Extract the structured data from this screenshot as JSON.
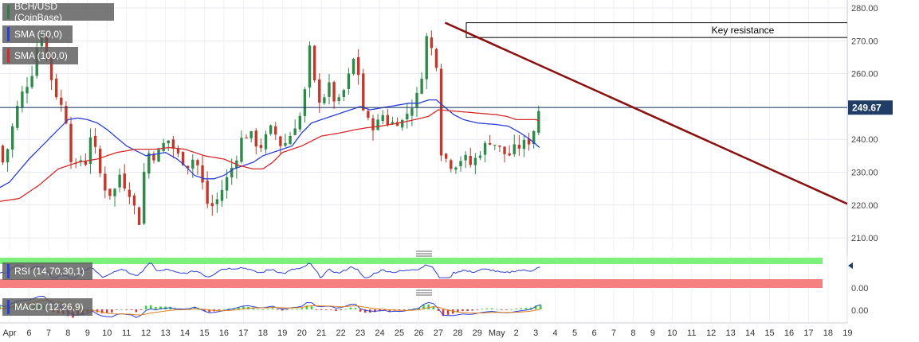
{
  "chart_data": [
    {
      "type": "candlestick",
      "title": "BCH/USD (CoinBase)",
      "indicators": [
        {
          "name": "SMA (50,0)",
          "color": "#2a3fd4"
        },
        {
          "name": "SMA (100,0)",
          "color": "#d42a2a"
        }
      ],
      "ylim": [
        205,
        282
      ],
      "y_ticks": [
        "210.00",
        "220.00",
        "230.00",
        "240.00",
        "250.00",
        "260.00",
        "270.00",
        "280.00"
      ],
      "x_ticks": [
        "Apr",
        "6",
        "7",
        "8",
        "9",
        "10",
        "11",
        "12",
        "13",
        "14",
        "15",
        "16",
        "17",
        "18",
        "19",
        "20",
        "21",
        "22",
        "23",
        "24",
        "25",
        "26",
        "27",
        "28",
        "29",
        "May",
        "2",
        "3",
        "4",
        "5",
        "6",
        "7",
        "8",
        "9",
        "10",
        "11",
        "12",
        "13",
        "14",
        "15",
        "16",
        "17",
        "18",
        "19"
      ],
      "last_price": "249.67",
      "last_price_value": 249.67,
      "annotations": {
        "resistance_label": "Key resistance",
        "resistance_zone": [
          271,
          275.5
        ],
        "trendline": [
          [
            8.85,
            275.5
          ],
          [
            19.5,
            219
          ]
        ]
      },
      "close_anchors": [
        [
          -0.6,
          238
        ],
        [
          -0.3,
          232
        ],
        [
          0.2,
          245
        ],
        [
          0.5,
          252
        ],
        [
          0.8,
          256
        ],
        [
          1.1,
          259
        ],
        [
          1.4,
          268
        ],
        [
          1.7,
          274
        ],
        [
          2.0,
          262
        ],
        [
          2.3,
          255
        ],
        [
          2.6,
          251
        ],
        [
          2.9,
          246
        ],
        [
          3.1,
          236
        ],
        [
          3.3,
          230
        ],
        [
          3.6,
          234
        ],
        [
          3.9,
          233
        ],
        [
          4.2,
          243
        ],
        [
          4.5,
          233
        ],
        [
          4.8,
          226
        ],
        [
          5.1,
          224
        ],
        [
          5.3,
          222
        ],
        [
          5.6,
          230
        ],
        [
          6.0,
          225
        ],
        [
          6.3,
          223
        ],
        [
          6.6,
          212
        ],
        [
          6.9,
          230
        ],
        [
          7.2,
          237
        ],
        [
          7.5,
          234
        ],
        [
          7.8,
          238
        ],
        [
          8.2,
          240
        ],
        [
          8.5,
          236
        ],
        [
          8.8,
          234
        ],
        [
          9.2,
          232
        ],
        [
          9.5,
          235
        ],
        [
          9.8,
          229
        ],
        [
          10.1,
          221
        ],
        [
          10.3,
          219
        ],
        [
          10.6,
          221
        ],
        [
          11.0,
          226
        ],
        [
          11.3,
          230
        ],
        [
          11.6,
          234
        ],
        [
          11.9,
          240
        ],
        [
          12.3,
          242
        ],
        [
          12.6,
          239
        ],
        [
          12.9,
          238
        ],
        [
          13.2,
          241
        ],
        [
          13.5,
          244
        ],
        [
          13.8,
          239
        ],
        [
          14.0,
          238
        ],
        [
          14.3,
          240
        ],
        [
          14.6,
          244
        ],
        [
          14.9,
          247
        ],
        [
          15.2,
          256
        ],
        [
          15.35,
          270
        ],
        [
          15.5,
          262
        ],
        [
          15.8,
          252
        ],
        [
          16.1,
          253
        ],
        [
          16.4,
          256
        ],
        [
          16.8,
          250
        ],
        [
          17.1,
          254
        ],
        [
          17.4,
          259
        ],
        [
          17.6,
          265
        ],
        [
          17.9,
          260
        ],
        [
          18.0,
          252
        ],
        [
          18.3,
          246
        ],
        [
          18.6,
          244
        ],
        [
          18.9,
          245
        ],
        [
          19.2,
          248
        ],
        [
          19.5,
          244
        ],
        [
          19.8,
          246
        ],
        [
          20.1,
          245
        ],
        [
          20.4,
          248
        ],
        [
          20.7,
          251
        ],
        [
          21.0,
          254
        ],
        [
          21.2,
          262
        ],
        [
          21.4,
          271
        ],
        [
          21.6,
          268
        ],
        [
          21.8,
          266
        ],
        [
          21.95,
          262
        ],
        [
          22.1,
          237
        ],
        [
          22.4,
          234
        ],
        [
          22.7,
          232
        ],
        [
          23.0,
          233
        ],
        [
          23.3,
          235
        ],
        [
          23.6,
          232
        ],
        [
          23.9,
          234
        ],
        [
          24.1,
          236
        ],
        [
          24.4,
          238
        ],
        [
          24.7,
          240
        ],
        [
          25.0,
          238
        ],
        [
          25.3,
          236
        ],
        [
          25.6,
          235
        ],
        [
          25.9,
          237
        ],
        [
          26.2,
          238
        ],
        [
          26.5,
          239
        ],
        [
          26.8,
          240
        ],
        [
          27.0,
          246
        ],
        [
          27.15,
          249
        ],
        [
          27.25,
          249.67
        ]
      ],
      "sma50_anchors": [
        [
          -0.6,
          225
        ],
        [
          0.0,
          227
        ],
        [
          1.0,
          234
        ],
        [
          2.0,
          240
        ],
        [
          3.0,
          246
        ],
        [
          3.5,
          246.5
        ],
        [
          4.0,
          246
        ],
        [
          4.5,
          245
        ],
        [
          5.0,
          243
        ],
        [
          6.0,
          238
        ],
        [
          7.0,
          235
        ],
        [
          8.0,
          236
        ],
        [
          8.6,
          234
        ],
        [
          9.0,
          232
        ],
        [
          9.5,
          229
        ],
        [
          10.0,
          228
        ],
        [
          10.5,
          228
        ],
        [
          11.0,
          229
        ],
        [
          11.5,
          231
        ],
        [
          12.0,
          232
        ],
        [
          12.5,
          233
        ],
        [
          13.0,
          235
        ],
        [
          13.5,
          236
        ],
        [
          14.0,
          237
        ],
        [
          14.5,
          238
        ],
        [
          15.0,
          242
        ],
        [
          15.5,
          245
        ],
        [
          16.0,
          246
        ],
        [
          16.5,
          247
        ],
        [
          17.0,
          248
        ],
        [
          17.5,
          249
        ],
        [
          18.0,
          250
        ],
        [
          18.5,
          249
        ],
        [
          19.0,
          249.5
        ],
        [
          19.5,
          250
        ],
        [
          20.0,
          250.5
        ],
        [
          20.5,
          251
        ],
        [
          21.0,
          251
        ],
        [
          21.5,
          252
        ],
        [
          21.9,
          252
        ],
        [
          22.3,
          250
        ],
        [
          22.8,
          247.5
        ],
        [
          23.3,
          246
        ],
        [
          24.0,
          245
        ],
        [
          25.0,
          244.5
        ],
        [
          25.6,
          244
        ],
        [
          26.2,
          242
        ],
        [
          26.7,
          240
        ],
        [
          27.2,
          237.5
        ]
      ],
      "sma100_anchors": [
        [
          -0.6,
          221
        ],
        [
          0.5,
          222
        ],
        [
          1.5,
          226
        ],
        [
          2.5,
          231
        ],
        [
          3.5,
          233
        ],
        [
          4.5,
          234
        ],
        [
          5.5,
          236
        ],
        [
          6.5,
          237
        ],
        [
          7.5,
          237
        ],
        [
          8.2,
          237.5
        ],
        [
          9.0,
          237
        ],
        [
          9.5,
          236
        ],
        [
          10.0,
          235
        ],
        [
          11.0,
          234
        ],
        [
          11.8,
          232
        ],
        [
          12.5,
          231
        ],
        [
          13.0,
          231
        ],
        [
          13.5,
          233
        ],
        [
          14.0,
          236
        ],
        [
          14.5,
          237
        ],
        [
          15.0,
          238
        ],
        [
          16.0,
          241
        ],
        [
          17.0,
          242
        ],
        [
          17.8,
          243
        ],
        [
          18.3,
          243.5
        ],
        [
          19.0,
          244
        ],
        [
          20.0,
          245
        ],
        [
          20.8,
          246
        ],
        [
          21.5,
          247
        ],
        [
          22.0,
          249
        ],
        [
          23.0,
          248.5
        ],
        [
          24.0,
          248
        ],
        [
          25.0,
          247.5
        ],
        [
          25.5,
          247
        ],
        [
          26.0,
          246
        ],
        [
          26.5,
          246
        ],
        [
          27.0,
          246
        ],
        [
          27.3,
          245.5
        ]
      ]
    },
    {
      "type": "line",
      "title": "RSI (14,70,30,1)",
      "ylim": [
        0,
        100
      ],
      "y_ticks": [
        "0.00"
      ],
      "overbought": 70,
      "oversold": 30,
      "last_value": 70
    },
    {
      "type": "histogram",
      "title": "MACD (12,26,9)",
      "y_ticks": [
        "0.00"
      ]
    }
  ]
}
